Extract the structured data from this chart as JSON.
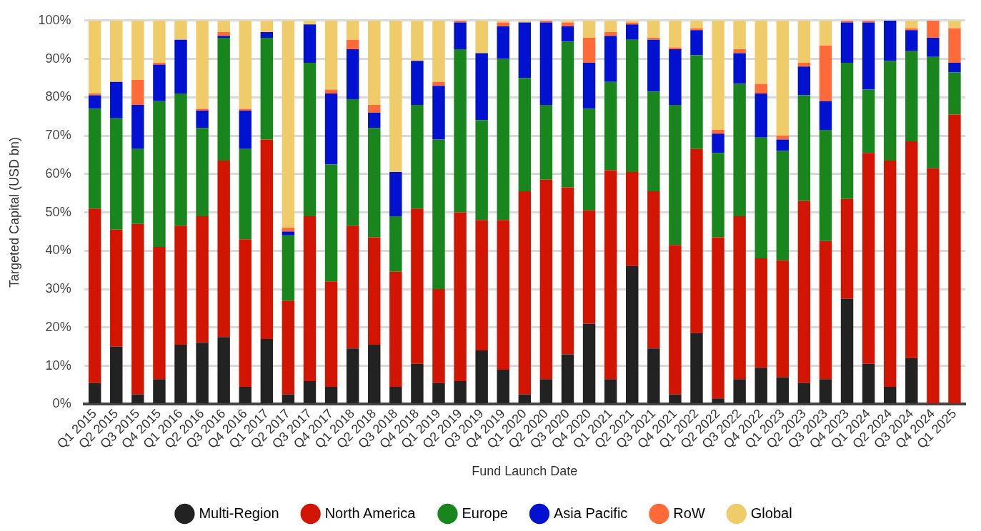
{
  "chart_data": {
    "type": "bar",
    "stacked": true,
    "xlabel": "Fund Launch Date",
    "ylabel": "Targeted Capital (USD bn)",
    "categories": [
      "Q1 2015",
      "Q2 2015",
      "Q3 2015",
      "Q4 2015",
      "Q1 2016",
      "Q2 2016",
      "Q3 2016",
      "Q4 2016",
      "Q1 2017",
      "Q2 2017",
      "Q3 2017",
      "Q4 2017",
      "Q1 2018",
      "Q2 2018",
      "Q3 2018",
      "Q4 2018",
      "Q1 2019",
      "Q2 2019",
      "Q3 2019",
      "Q4 2019",
      "Q1 2020",
      "Q2 2020",
      "Q3 2020",
      "Q4 2020",
      "Q1 2021",
      "Q2 2021",
      "Q3 2021",
      "Q4 2021",
      "Q1 2022",
      "Q2 2022",
      "Q3 2022",
      "Q4 2022",
      "Q1 2023",
      "Q2 2023",
      "Q3 2023",
      "Q4 2023",
      "Q1 2024",
      "Q2 2024",
      "Q3 2024",
      "Q4 2024",
      "Q1 2025"
    ],
    "series": [
      {
        "name": "Multi-Region",
        "color": "#222222",
        "values": [
          5.5,
          15,
          2.5,
          6.5,
          15.5,
          16,
          17.5,
          4.5,
          17,
          2.5,
          6,
          4.5,
          14.5,
          15.5,
          4.5,
          10.5,
          5.5,
          6,
          14,
          9,
          2.5,
          6.5,
          13,
          21,
          6.5,
          36,
          14.5,
          2.5,
          18.5,
          1.5,
          6.5,
          9.5,
          7,
          5.5,
          6.5,
          27.5,
          10.5,
          4.5,
          12,
          0,
          0
        ]
      },
      {
        "name": "North America",
        "color": "#d21500",
        "values": [
          45.5,
          30.5,
          44.5,
          34.5,
          31,
          33,
          46,
          38.5,
          52,
          24.5,
          43,
          27.5,
          32,
          28,
          30,
          40.5,
          24.5,
          44,
          34,
          39,
          53,
          52,
          43.5,
          29.5,
          54.5,
          24.5,
          41,
          39,
          48,
          42,
          42.5,
          28.5,
          30.5,
          47.5,
          36,
          26,
          55,
          59,
          56.5,
          61.5,
          75.5
        ]
      },
      {
        "name": "Europe",
        "color": "#18861c",
        "values": [
          26,
          29,
          19.5,
          38,
          34.5,
          23,
          32,
          23.5,
          26.5,
          17,
          40,
          30.5,
          33,
          28.5,
          14.5,
          27,
          39,
          42.5,
          26,
          42,
          29.5,
          19.5,
          38,
          26.5,
          23,
          34.5,
          26,
          36.5,
          24.5,
          22,
          34.5,
          31.5,
          28.5,
          27.5,
          29,
          35.5,
          16.5,
          26,
          23.5,
          29,
          11
        ]
      },
      {
        "name": "Asia Pacific",
        "color": "#0012cf",
        "values": [
          3.5,
          9.5,
          11.5,
          9.5,
          14,
          4.5,
          0.5,
          10,
          1.5,
          1,
          10,
          18.5,
          13,
          4,
          11.5,
          11.5,
          14,
          7,
          17.5,
          8.5,
          14.5,
          21.5,
          4,
          12,
          12,
          4,
          13.5,
          14.5,
          6.5,
          5,
          8,
          11.5,
          3,
          7.5,
          7.5,
          10.5,
          17.5,
          10.5,
          5.5,
          5,
          2.5
        ]
      },
      {
        "name": "RoW",
        "color": "#ff6a38",
        "values": [
          0.5,
          0,
          6.5,
          0.5,
          0,
          0.5,
          1,
          0.5,
          0,
          1,
          0,
          1,
          2.5,
          2,
          0,
          0,
          1,
          0.5,
          0,
          1,
          0,
          0.5,
          1,
          6.5,
          1,
          0.5,
          0.5,
          0.5,
          0.5,
          1,
          1,
          2.5,
          1,
          1,
          14.5,
          0.5,
          0.5,
          0,
          0.5,
          4.5,
          9
        ]
      },
      {
        "name": "Global",
        "color": "#f0cb6a",
        "values": [
          19,
          16,
          15.5,
          11,
          5,
          23,
          3,
          23,
          3,
          54,
          1,
          18,
          5,
          22,
          39.5,
          10.5,
          16,
          0,
          8.5,
          0.5,
          0.5,
          0,
          0.5,
          4.5,
          3,
          0.5,
          4.5,
          7,
          2,
          28.5,
          7.5,
          16.5,
          30,
          11,
          6.5,
          0,
          0,
          0,
          2,
          0,
          2
        ]
      }
    ],
    "ylim": [
      0,
      100
    ],
    "yticks": [
      {
        "value": 0,
        "label": "0%"
      },
      {
        "value": 10,
        "label": "10%"
      },
      {
        "value": 20,
        "label": "20%"
      },
      {
        "value": 30,
        "label": "30%"
      },
      {
        "value": 40,
        "label": "40%"
      },
      {
        "value": 50,
        "label": "50%"
      },
      {
        "value": 60,
        "label": "60%"
      },
      {
        "value": 70,
        "label": "70%"
      },
      {
        "value": 80,
        "label": "80%"
      },
      {
        "value": 90,
        "label": "90%"
      },
      {
        "value": 100,
        "label": "100%"
      }
    ],
    "grid": "y",
    "legend": "bottom",
    "marker": "circle"
  }
}
